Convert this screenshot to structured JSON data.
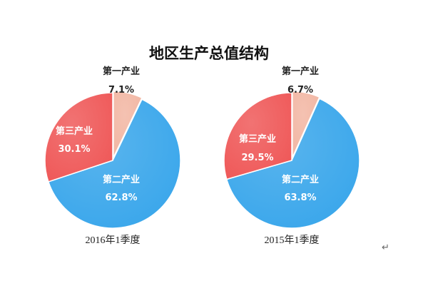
{
  "title": "地区生产总值结构",
  "colors": {
    "primary": "#f2b7a4",
    "secondary": "#3ba7eb",
    "tertiary": "#ef5a5a"
  },
  "chart_data": [
    {
      "type": "pie",
      "caption": "2016年1季度",
      "slices": [
        {
          "label": "第一产业",
          "value": 7.1,
          "value_text": "7.1%",
          "color": "#f2b7a4"
        },
        {
          "label": "第二产业",
          "value": 62.8,
          "value_text": "62.8%",
          "color": "#3ba7eb"
        },
        {
          "label": "第三产业",
          "value": 30.1,
          "value_text": "30.1%",
          "color": "#ef5a5a"
        }
      ]
    },
    {
      "type": "pie",
      "caption": "2015年1季度",
      "slices": [
        {
          "label": "第一产业",
          "value": 6.7,
          "value_text": "6.7%",
          "color": "#f2b7a4"
        },
        {
          "label": "第二产业",
          "value": 63.8,
          "value_text": "63.8%",
          "color": "#3ba7eb"
        },
        {
          "label": "第三产业",
          "value": 29.5,
          "value_text": "29.5%",
          "color": "#ef5a5a"
        }
      ]
    }
  ],
  "stray_mark": "↵"
}
